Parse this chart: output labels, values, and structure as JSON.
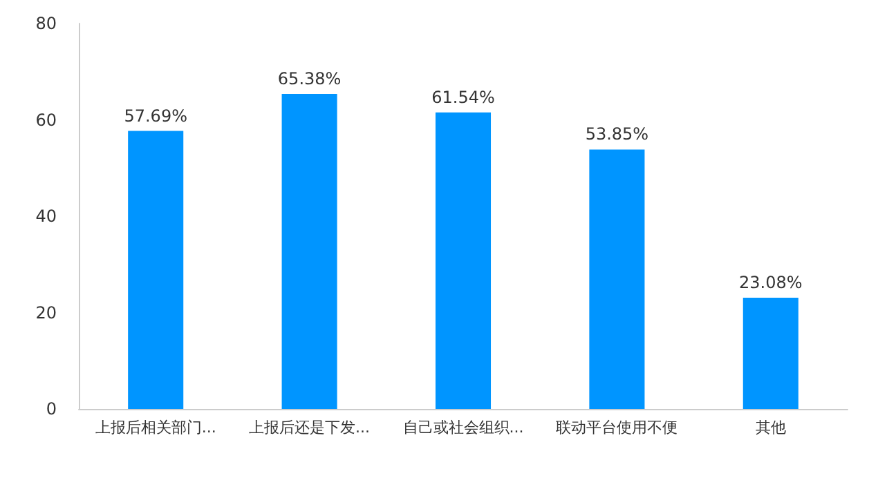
{
  "chart_data": {
    "type": "bar",
    "categories": [
      "上报后相关部门...",
      "上报后还是下发...",
      "自己或社会组织...",
      "联动平台使用不便",
      "其他"
    ],
    "values": [
      57.69,
      65.38,
      61.54,
      53.85,
      23.08
    ],
    "value_labels": [
      "57.69%",
      "65.38%",
      "61.54%",
      "53.85%",
      "23.08%"
    ],
    "color": "#0095ff",
    "ylim": [
      0,
      80
    ],
    "yticks": [
      0,
      20,
      40,
      60,
      80
    ],
    "grid": false
  }
}
